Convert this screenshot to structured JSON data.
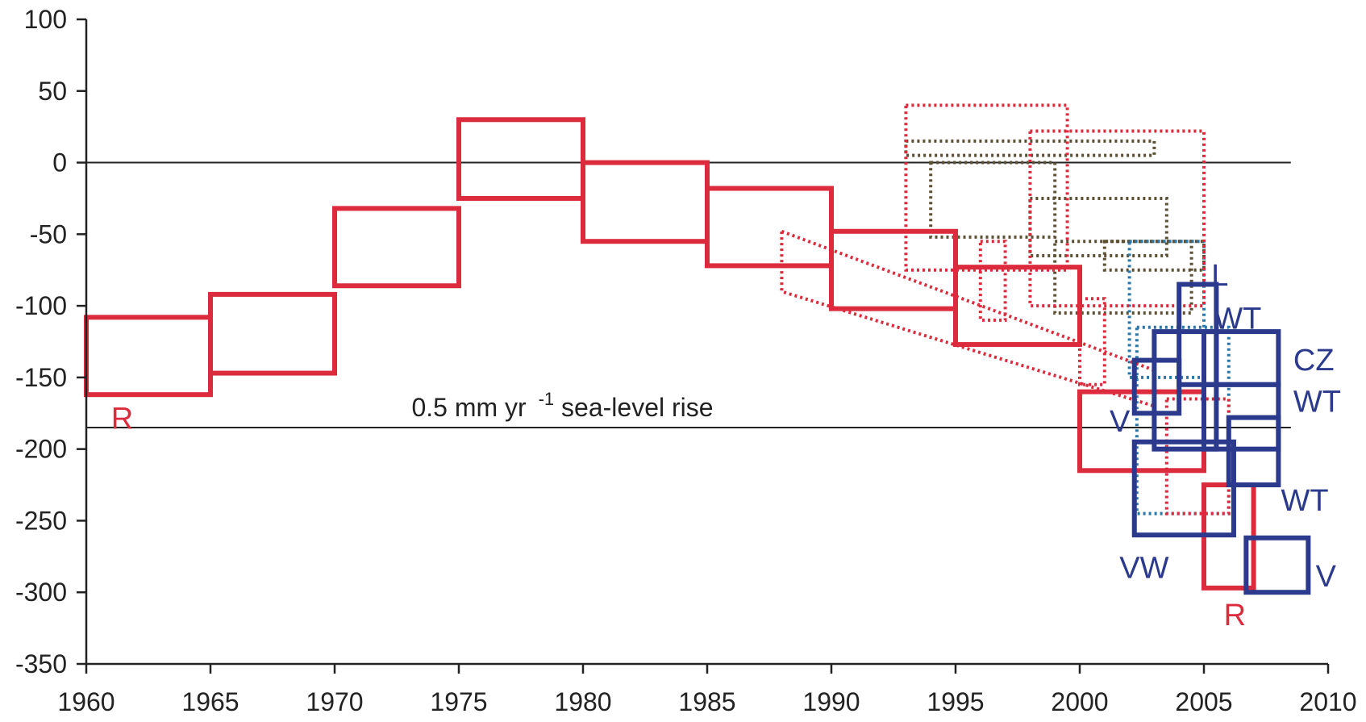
{
  "chart_data": {
    "type": "box-interval",
    "xlim": [
      1960,
      2010
    ],
    "ylim": [
      -350,
      100
    ],
    "x_ticks": [
      "1960",
      "1965",
      "1970",
      "1975",
      "1980",
      "1985",
      "1990",
      "1995",
      "2000",
      "2005",
      "2010"
    ],
    "y_ticks": [
      "100",
      "50",
      "0",
      "-50",
      "-100",
      "-150",
      "-200",
      "-250",
      "-300",
      "-350"
    ],
    "x_tick_values": [
      1960,
      1965,
      1970,
      1975,
      1980,
      1985,
      1990,
      1995,
      2000,
      2005,
      2010
    ],
    "y_tick_values": [
      100,
      50,
      0,
      -50,
      -100,
      -150,
      -200,
      -250,
      -300,
      -350
    ],
    "reference_lines": [
      {
        "y": 0,
        "label": ""
      },
      {
        "y": -185,
        "label": "0.5 mm yr",
        "superscript": "-1",
        "suffix": " sea-level rise"
      }
    ],
    "colors": {
      "red": "#dc2b3c",
      "blue": "#2b3a8c",
      "brown": "#5c5035",
      "teal": "#2c76a8",
      "axis": "#222222"
    },
    "series": [
      {
        "color": "red",
        "style": "solid",
        "boxes": [
          {
            "x": [
              1960,
              1965
            ],
            "y": [
              -162,
              -108
            ]
          },
          {
            "x": [
              1965,
              1970
            ],
            "y": [
              -147,
              -92
            ]
          },
          {
            "x": [
              1970,
              1975
            ],
            "y": [
              -86,
              -32
            ]
          },
          {
            "x": [
              1975,
              1980
            ],
            "y": [
              -25,
              30
            ]
          },
          {
            "x": [
              1980,
              1985
            ],
            "y": [
              -55,
              0
            ]
          },
          {
            "x": [
              1985,
              1990
            ],
            "y": [
              -72,
              -18
            ]
          },
          {
            "x": [
              1990,
              1995
            ],
            "y": [
              -102,
              -48
            ]
          },
          {
            "x": [
              1995,
              2000
            ],
            "y": [
              -127,
              -73
            ]
          },
          {
            "x": [
              2000,
              2005
            ],
            "y": [
              -215,
              -160
            ]
          },
          {
            "x": [
              2005,
              2007
            ],
            "y": [
              -297,
              -225
            ]
          }
        ]
      },
      {
        "color": "red",
        "style": "dotted",
        "boxes": [
          {
            "x": [
              1993,
              1999.5
            ],
            "y": [
              -75,
              40
            ]
          },
          {
            "x": [
              1998,
              2005
            ],
            "y": [
              -100,
              22
            ]
          },
          {
            "x": [
              1996,
              1997
            ],
            "y": [
              -110,
              -55
            ]
          },
          {
            "x": [
              2000,
              2001
            ],
            "y": [
              -155,
              -95
            ]
          },
          {
            "x": [
              2003.5,
              2006
            ],
            "y": [
              -245,
              -165
            ]
          }
        ],
        "polygons": [
          [
            [
              1988,
              -48
            ],
            [
              2003,
              -145
            ],
            [
              2003,
              -170
            ],
            [
              1988,
              -90
            ]
          ]
        ]
      },
      {
        "color": "brown",
        "style": "dotted",
        "boxes": [
          {
            "x": [
              1993,
              2003
            ],
            "y": [
              5,
              15
            ]
          },
          {
            "x": [
              1994,
              1999
            ],
            "y": [
              -52,
              0
            ]
          },
          {
            "x": [
              1998,
              2003.5
            ],
            "y": [
              -65,
              -25
            ]
          },
          {
            "x": [
              1999,
              2004.5
            ],
            "y": [
              -105,
              -55
            ]
          },
          {
            "x": [
              2001,
              2005
            ],
            "y": [
              -75,
              -55
            ]
          }
        ]
      },
      {
        "color": "teal",
        "style": "dotted",
        "boxes": [
          {
            "x": [
              2002,
              2005
            ],
            "y": [
              -150,
              -55
            ]
          },
          {
            "x": [
              2002.3,
              2006
            ],
            "y": [
              -245,
              -115
            ]
          }
        ]
      },
      {
        "color": "blue",
        "style": "solid",
        "boxes": [
          {
            "x": [
              2004,
              2005.5
            ],
            "y": [
              -155,
              -85
            ]
          },
          {
            "x": [
              2003,
              2005.5
            ],
            "y": [
              -200,
              -118
            ]
          },
          {
            "x": [
              2005,
              2008
            ],
            "y": [
              -155,
              -118
            ]
          },
          {
            "x": [
              2005,
              2008
            ],
            "y": [
              -200,
              -155
            ]
          },
          {
            "x": [
              2006,
              2008
            ],
            "y": [
              -225,
              -178
            ]
          },
          {
            "x": [
              2002.2,
              2004
            ],
            "y": [
              -175,
              -138
            ]
          },
          {
            "x": [
              2002.2,
              2006.2
            ],
            "y": [
              -260,
              -195
            ]
          },
          {
            "x": [
              2006.7,
              2009.2
            ],
            "y": [
              -300,
              -262
            ]
          }
        ]
      }
    ],
    "labels": [
      {
        "text": "R",
        "x": 1961,
        "y": -178,
        "color": "red"
      },
      {
        "text": "R",
        "x": 2005.8,
        "y": -315,
        "color": "red"
      },
      {
        "text": "L",
        "x": 2005.3,
        "y": -78,
        "color": "blue"
      },
      {
        "text": "WT",
        "x": 2005.4,
        "y": -108,
        "color": "blue"
      },
      {
        "text": "CZ",
        "x": 2008.6,
        "y": -137,
        "color": "blue"
      },
      {
        "text": "WT",
        "x": 2008.6,
        "y": -166,
        "color": "blue"
      },
      {
        "text": "V",
        "x": 2001.2,
        "y": -180,
        "color": "blue"
      },
      {
        "text": "WT",
        "x": 2008.1,
        "y": -235,
        "color": "blue"
      },
      {
        "text": "VW",
        "x": 2001.6,
        "y": -282,
        "color": "blue"
      },
      {
        "text": "V",
        "x": 2009.5,
        "y": -288,
        "color": "blue"
      }
    ]
  }
}
